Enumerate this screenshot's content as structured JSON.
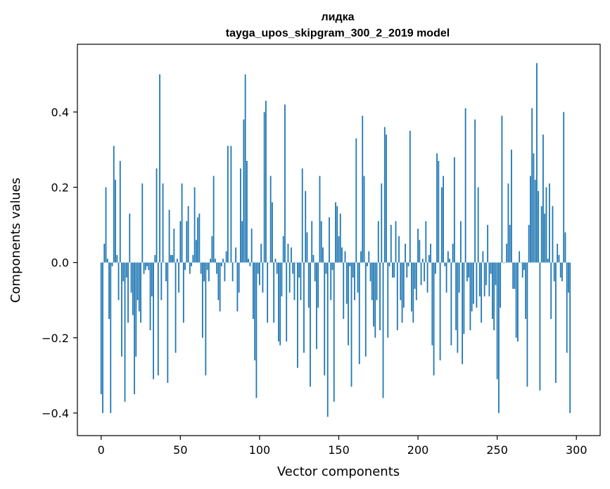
{
  "chart_data": {
    "type": "bar",
    "title_line1": "лидка",
    "title_line2": "tayga_upos_skipgram_300_2_2019 model",
    "xlabel": "Vector components",
    "ylabel": "Components values",
    "xlim": [
      -15,
      315
    ],
    "ylim": [
      -0.46,
      0.58
    ],
    "xticks": [
      0,
      50,
      100,
      150,
      200,
      250,
      300
    ],
    "xtick_labels": [
      "0",
      "50",
      "100",
      "150",
      "200",
      "250",
      "300"
    ],
    "yticks": [
      -0.4,
      -0.2,
      0.0,
      0.2,
      0.4
    ],
    "ytick_labels": [
      "−0.4",
      "−0.2",
      "0.0",
      "0.2",
      "0.4"
    ],
    "bar_color": "#1f77b4",
    "values": [
      -0.35,
      -0.4,
      0.05,
      0.2,
      0.01,
      -0.15,
      -0.4,
      -0.01,
      0.31,
      0.22,
      0.02,
      -0.1,
      0.27,
      -0.25,
      -0.05,
      -0.37,
      -0.04,
      -0.16,
      0.13,
      -0.08,
      -0.14,
      -0.35,
      -0.25,
      -0.1,
      -0.13,
      -0.16,
      0.21,
      -0.03,
      -0.02,
      -0.01,
      -0.02,
      -0.18,
      -0.09,
      -0.31,
      0.02,
      0.25,
      -0.3,
      0.5,
      -0.1,
      0.21,
      0.0,
      -0.05,
      -0.32,
      0.14,
      0.02,
      0.02,
      0.09,
      -0.24,
      0.01,
      -0.08,
      0.11,
      0.21,
      -0.16,
      -0.02,
      0.11,
      0.15,
      -0.03,
      -0.01,
      0.02,
      0.2,
      0.06,
      0.12,
      0.13,
      -0.03,
      -0.2,
      -0.05,
      -0.3,
      -0.02,
      -0.05,
      0.01,
      0.07,
      0.23,
      0.01,
      -0.03,
      -0.1,
      -0.13,
      -0.01,
      0.01,
      -0.05,
      0.03,
      0.31,
      0.0,
      0.31,
      -0.05,
      0.0,
      0.04,
      -0.13,
      -0.08,
      0.25,
      0.11,
      0.38,
      0.5,
      0.27,
      0.01,
      -0.01,
      0.09,
      -0.15,
      -0.26,
      -0.36,
      -0.03,
      -0.06,
      0.05,
      -0.08,
      0.4,
      0.43,
      -0.16,
      0.0,
      0.23,
      0.16,
      -0.16,
      0.01,
      -0.03,
      -0.21,
      -0.22,
      -0.09,
      0.07,
      0.42,
      -0.21,
      0.05,
      -0.08,
      0.04,
      -0.03,
      -0.1,
      0.0,
      -0.28,
      -0.04,
      -0.1,
      0.25,
      -0.24,
      0.19,
      0.08,
      -0.12,
      -0.33,
      0.11,
      0.02,
      -0.05,
      -0.23,
      -0.12,
      0.23,
      0.11,
      0.04,
      -0.3,
      -0.03,
      -0.41,
      0.12,
      -0.1,
      -0.02,
      -0.37,
      0.16,
      0.15,
      0.07,
      0.13,
      0.04,
      -0.15,
      0.03,
      -0.11,
      -0.22,
      -0.01,
      -0.33,
      -0.04,
      -0.1,
      0.33,
      -0.08,
      -0.27,
      0.03,
      0.39,
      0.23,
      -0.25,
      -0.01,
      0.03,
      -0.05,
      -0.1,
      -0.17,
      -0.2,
      -0.1,
      0.11,
      -0.18,
      0.21,
      -0.36,
      0.36,
      0.34,
      -0.2,
      -0.01,
      0.1,
      -0.04,
      -0.04,
      0.11,
      -0.18,
      0.07,
      -0.1,
      -0.16,
      -0.12,
      0.05,
      -0.04,
      -0.01,
      0.35,
      -0.13,
      -0.16,
      -0.07,
      -0.1,
      0.09,
      0.06,
      -0.06,
      0.01,
      -0.05,
      0.11,
      -0.08,
      0.02,
      0.05,
      -0.22,
      -0.3,
      -0.03,
      0.29,
      0.27,
      -0.26,
      0.2,
      0.23,
      -0.01,
      -0.08,
      0.03,
      0.01,
      -0.22,
      0.05,
      0.28,
      -0.18,
      -0.24,
      -0.08,
      0.11,
      -0.27,
      -0.19,
      0.41,
      -0.05,
      -0.04,
      -0.18,
      -0.13,
      -0.11,
      0.38,
      -0.12,
      0.2,
      -0.09,
      -0.16,
      0.03,
      -0.09,
      -0.06,
      0.1,
      -0.09,
      -0.03,
      -0.15,
      -0.18,
      -0.06,
      -0.31,
      -0.4,
      -0.12,
      0.39,
      0.0,
      0.0,
      0.05,
      0.21,
      0.1,
      0.3,
      -0.07,
      -0.07,
      -0.2,
      -0.21,
      0.03,
      0.0,
      -0.04,
      -0.02,
      -0.15,
      -0.33,
      0.1,
      0.23,
      0.41,
      0.29,
      0.22,
      0.53,
      0.19,
      -0.34,
      0.15,
      0.34,
      0.13,
      0.2,
      0.01,
      0.21,
      -0.15,
      0.15,
      -0.05,
      -0.32,
      0.05,
      0.02,
      -0.04,
      -0.05,
      0.4,
      0.08,
      -0.24,
      -0.08,
      -0.4
    ]
  }
}
